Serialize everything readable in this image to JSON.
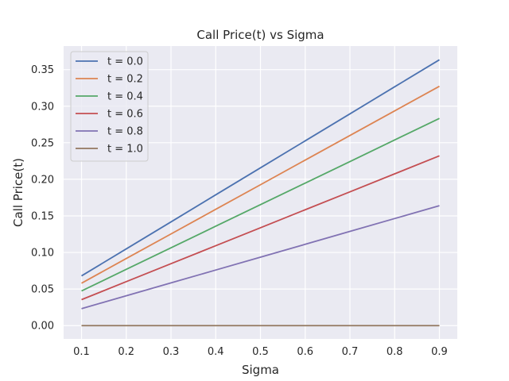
{
  "chart_data": {
    "type": "line",
    "title": "Call Price(t) vs Sigma",
    "xlabel": "Sigma",
    "ylabel": "Call Price(t)",
    "x": [
      0.1,
      0.2,
      0.3,
      0.4,
      0.5,
      0.6,
      0.7,
      0.8,
      0.9
    ],
    "xlim": [
      0.06,
      0.94
    ],
    "ylim": [
      -0.0182,
      0.3822
    ],
    "xticks": [
      "0.1",
      "0.2",
      "0.3",
      "0.4",
      "0.5",
      "0.6",
      "0.7",
      "0.8",
      "0.9"
    ],
    "yticks": [
      "0.00",
      "0.05",
      "0.10",
      "0.15",
      "0.20",
      "0.25",
      "0.30",
      "0.35"
    ],
    "grid": true,
    "legend_position": "top-left",
    "series": [
      {
        "name": "t = 0.0",
        "color": "#4c72b0",
        "values": [
          0.068,
          0.1049,
          0.1418,
          0.1788,
          0.2157,
          0.2526,
          0.2895,
          0.3265,
          0.3634
        ]
      },
      {
        "name": "t = 0.2",
        "color": "#dd8452",
        "values": [
          0.058,
          0.0917,
          0.1253,
          0.159,
          0.1926,
          0.2263,
          0.2599,
          0.2936,
          0.3272
        ]
      },
      {
        "name": "t = 0.4",
        "color": "#55a868",
        "values": [
          0.0474,
          0.0769,
          0.1064,
          0.1359,
          0.1654,
          0.1948,
          0.2243,
          0.2538,
          0.2833
        ]
      },
      {
        "name": "t = 0.6",
        "color": "#c44e52",
        "values": [
          0.0355,
          0.0601,
          0.0847,
          0.1092,
          0.1338,
          0.1584,
          0.1829,
          0.2075,
          0.2321
        ]
      },
      {
        "name": "t = 0.8",
        "color": "#8172b3",
        "values": [
          0.0232,
          0.0408,
          0.0584,
          0.076,
          0.0936,
          0.1112,
          0.1288,
          0.1464,
          0.164
        ]
      },
      {
        "name": "t = 1.0",
        "color": "#937860",
        "values": [
          0,
          0,
          0,
          0,
          0,
          0,
          0,
          0,
          0
        ]
      }
    ]
  }
}
